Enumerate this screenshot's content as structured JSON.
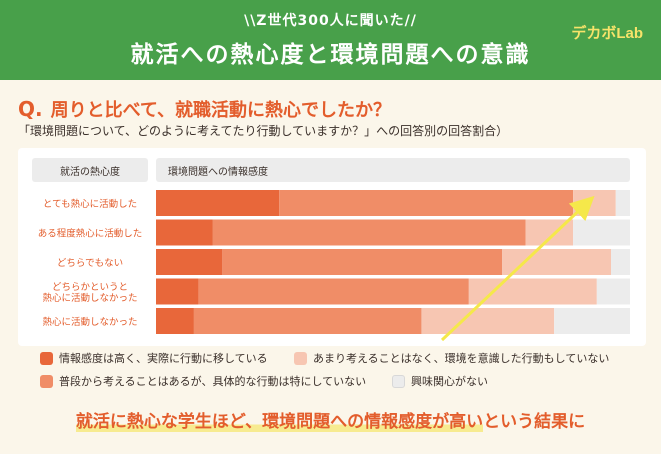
{
  "header": {
    "subtitle": "\\\\Z世代300人に聞いた//",
    "title": "就活への熱心度と環境問題への意識"
  },
  "logo": {
    "text": "デカボLab"
  },
  "question": {
    "prefix": "Q.",
    "text": "周りと比べて、就職活動に熱心でしたか？",
    "note": "「環境問題について、どのように考えてたり行動していますか？」への回答別の回答割合）"
  },
  "footer": {
    "text_highlight": "就活に熱心な学生ほど、環境問題への情報感度が高い",
    "text_rest": "という結果に"
  },
  "chart_data": {
    "type": "bar",
    "orientation": "horizontal",
    "stacked": true,
    "row_header": "就活の熱心度",
    "column_header": "環境問題への情報感度",
    "categories": [
      "とても熱心に活動した",
      "ある程度熱心に活動した",
      "どちらでもない",
      "どちらかというと\n熱心に活動しなかった",
      "熱心に活動しなかった"
    ],
    "series": [
      {
        "name": "情報感度は高く、実際に行動に移している",
        "color": "#e8673a",
        "values": [
          26,
          12,
          14,
          9,
          8
        ]
      },
      {
        "name": "普段から考えることはあるが、具体的な行動は特にしていない",
        "color": "#f08d67",
        "values": [
          62,
          66,
          59,
          57,
          48
        ]
      },
      {
        "name": "あまり考えることはなく、環境を意識した行動もしていない",
        "color": "#f7c6b2",
        "values": [
          9,
          10,
          23,
          27,
          28
        ]
      },
      {
        "name": "興味関心がない",
        "color": "#ececec",
        "values": [
          3,
          12,
          4,
          7,
          16
        ]
      }
    ],
    "xlim": [
      0,
      100
    ],
    "legend_position": "bottom",
    "annotation": "yellow upward trend arrow"
  }
}
